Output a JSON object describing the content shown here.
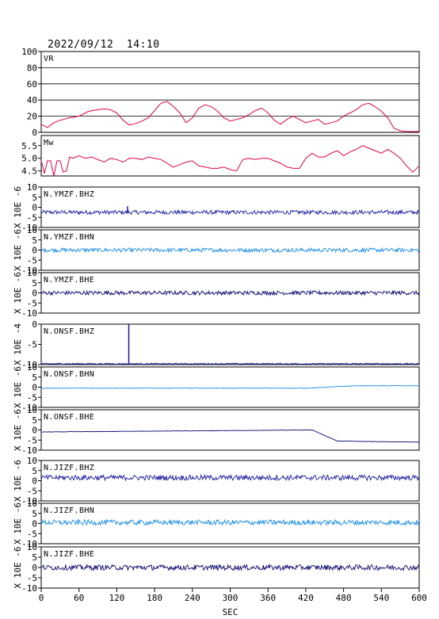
{
  "header": {
    "timestamp": "2022/09/12  14:10"
  },
  "chart_data": {
    "type": "line",
    "xlabel": "SEC",
    "xlim": [
      0,
      600
    ],
    "xticks": [
      0,
      60,
      120,
      180,
      240,
      300,
      360,
      420,
      480,
      540,
      600
    ],
    "colors": {
      "vr": "#e0004a",
      "mw": "#e0004a",
      "dark": "#1a1aa0",
      "light": "#1d8ee8",
      "navy": "#0a0a6e"
    },
    "panels": [
      {
        "key": "vr",
        "label": "VR",
        "ylim": [
          0,
          100
        ],
        "yticks": [
          0,
          20,
          40,
          60,
          80,
          100
        ],
        "grid": true,
        "x": [
          0,
          10,
          20,
          30,
          45,
          60,
          75,
          90,
          100,
          110,
          120,
          130,
          140,
          150,
          160,
          170,
          180,
          190,
          200,
          210,
          220,
          230,
          240,
          250,
          260,
          270,
          280,
          290,
          300,
          310,
          320,
          330,
          340,
          350,
          360,
          370,
          380,
          390,
          400,
          410,
          420,
          430,
          440,
          450,
          460,
          470,
          480,
          490,
          500,
          510,
          520,
          530,
          540,
          550,
          560,
          570,
          580,
          590,
          600
        ],
        "y": [
          10,
          6,
          12,
          15,
          18,
          20,
          26,
          28,
          29,
          28,
          24,
          15,
          9,
          11,
          14,
          18,
          27,
          36,
          38,
          32,
          24,
          12,
          18,
          30,
          34,
          32,
          26,
          18,
          14,
          16,
          18,
          22,
          27,
          30,
          24,
          15,
          10,
          16,
          20,
          16,
          12,
          14,
          16,
          10,
          12,
          14,
          20,
          24,
          28,
          34,
          36,
          32,
          26,
          18,
          5,
          2,
          1,
          1,
          1
        ]
      },
      {
        "key": "mw",
        "label": "Mw",
        "ylim": [
          4.3,
          5.9
        ],
        "yticks": [
          4.5,
          5.0,
          5.5
        ],
        "ytick_labels": [
          "4.5",
          "5.0",
          "5.5"
        ],
        "grid": false,
        "x": [
          0,
          5,
          10,
          15,
          20,
          25,
          30,
          35,
          40,
          45,
          50,
          55,
          60,
          70,
          80,
          90,
          100,
          110,
          120,
          130,
          140,
          150,
          160,
          170,
          180,
          190,
          200,
          210,
          220,
          230,
          240,
          250,
          260,
          270,
          280,
          290,
          300,
          310,
          320,
          330,
          340,
          350,
          360,
          370,
          380,
          390,
          400,
          410,
          420,
          430,
          440,
          450,
          460,
          470,
          480,
          490,
          500,
          510,
          520,
          530,
          540,
          550,
          560,
          570,
          580,
          590,
          600
        ],
        "y": [
          4.9,
          4.4,
          4.9,
          4.9,
          4.3,
          4.9,
          4.9,
          4.45,
          4.5,
          5.05,
          5.0,
          5.05,
          5.1,
          5.0,
          5.05,
          4.95,
          4.85,
          5.0,
          4.95,
          4.85,
          5.0,
          5.0,
          4.95,
          5.05,
          5.0,
          4.95,
          4.8,
          4.65,
          4.75,
          4.85,
          4.9,
          4.7,
          4.65,
          4.6,
          4.6,
          4.65,
          4.55,
          4.5,
          4.95,
          5.0,
          4.95,
          5.0,
          5.0,
          4.9,
          4.8,
          4.65,
          4.6,
          4.6,
          5.0,
          5.2,
          5.05,
          5.05,
          5.2,
          5.3,
          5.1,
          5.25,
          5.35,
          5.5,
          5.4,
          5.3,
          5.2,
          5.35,
          5.2,
          5.0,
          4.7,
          4.45,
          4.7
        ]
      },
      {
        "key": "w1",
        "label": "N.YMZF.BHZ",
        "ylabel": "X 10E -6",
        "ylim": [
          -10,
          10
        ],
        "yticks": [
          -10,
          -5,
          0,
          5,
          10
        ],
        "base": -2.5,
        "amp": 1.0,
        "drift": 0,
        "spike": {
          "x": 137,
          "y": 0.5
        },
        "color": "dark"
      },
      {
        "key": "w2",
        "label": "N.YMZF.BHN",
        "ylabel": "X 10E -6",
        "ylim": [
          -10,
          10
        ],
        "yticks": [
          -10,
          -5,
          0,
          5,
          10
        ],
        "base": 0.0,
        "amp": 1.0,
        "drift": 0,
        "color": "light"
      },
      {
        "key": "w3",
        "label": "N.YMZF.BHE",
        "ylabel": "X 10E -6",
        "ylim": [
          -10,
          10
        ],
        "yticks": [
          -10,
          -5,
          0,
          5,
          10
        ],
        "base": 0.0,
        "amp": 1.0,
        "drift": 0,
        "color": "navy"
      },
      {
        "key": "w4",
        "label": "N.ONSF.BHZ",
        "ylabel": "X 10E -4",
        "ylim": [
          -10,
          0
        ],
        "yticks": [
          -10,
          -5,
          0
        ],
        "base": -9.8,
        "amp": 0.15,
        "drift": 0,
        "spike": {
          "x": 139,
          "y": 0
        },
        "color": "dark"
      },
      {
        "key": "w5",
        "label": "N.ONSF.BHN",
        "ylabel": "X 10E -6",
        "ylim": [
          -10,
          10
        ],
        "yticks": [
          -10,
          -5,
          0,
          5,
          10
        ],
        "base": -0.5,
        "amp": 0.15,
        "drift": 1,
        "color": "light"
      },
      {
        "key": "w6",
        "label": "N.ONSF.BHE",
        "ylabel": "X 10E -6",
        "ylim": [
          -10,
          10
        ],
        "yticks": [
          -10,
          -5,
          0,
          5,
          10
        ],
        "base": -1.0,
        "amp": 0.1,
        "drift": 2,
        "color": "navy"
      },
      {
        "key": "w7",
        "label": "N.JIZF.BHZ",
        "ylabel": "X 10E -6",
        "ylim": [
          -10,
          10
        ],
        "yticks": [
          -10,
          -5,
          0,
          5,
          10
        ],
        "base": 1.5,
        "amp": 1.3,
        "drift": 0,
        "color": "dark"
      },
      {
        "key": "w8",
        "label": "N.JIZF.BHN",
        "ylabel": "X 10E -6",
        "ylim": [
          -10,
          10
        ],
        "yticks": [
          -10,
          -5,
          0,
          5,
          10
        ],
        "base": 0.5,
        "amp": 1.3,
        "drift": 0,
        "color": "light"
      },
      {
        "key": "w9",
        "label": "N.JIZF.BHE",
        "ylabel": "X 10E -6",
        "ylim": [
          -10,
          10
        ],
        "yticks": [
          -10,
          -5,
          0,
          5,
          10
        ],
        "base": 0.0,
        "amp": 1.3,
        "drift": 0,
        "color": "navy"
      }
    ]
  }
}
